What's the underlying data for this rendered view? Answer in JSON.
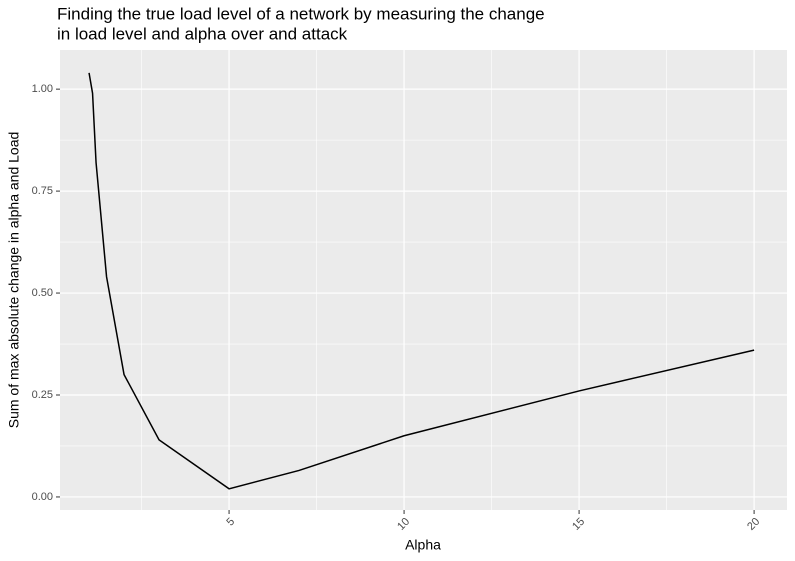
{
  "chart_data": {
    "type": "line",
    "title": [
      "Finding the true load level of a network by measuring the change",
      "in load level and alpha over and attack"
    ],
    "x_label": "Alpha",
    "y_label": "Sum of max absolute change in alpha and Load",
    "x": [
      1,
      1.1,
      1.2,
      1.5,
      2,
      3,
      5,
      7,
      10,
      15,
      20
    ],
    "series": [
      {
        "color": "#000000",
        "values": [
          1.04,
          0.99,
          0.82,
          0.54,
          0.3,
          0.14,
          0.02,
          0.065,
          0.15,
          0.26,
          0.36
        ]
      }
    ],
    "xlim": [
      0.17,
      20.94
    ],
    "ylim": [
      -0.032,
      1.096
    ],
    "xticks": [
      5,
      10,
      15,
      20
    ],
    "yticks": [
      {
        "value": 0,
        "label": "0.00"
      },
      {
        "value": 0.25,
        "label": "0.25"
      },
      {
        "value": 0.5,
        "label": "0.50"
      },
      {
        "value": 0.75,
        "label": "0.75"
      },
      {
        "value": 1,
        "label": "1.00"
      }
    ],
    "x_minor_grid": [
      2.5,
      7.5,
      12.5,
      17.5
    ],
    "y_minor_grid": [
      0.125,
      0.375,
      0.625,
      0.875
    ],
    "grid": true,
    "panel_color": "#ebebeb"
  }
}
